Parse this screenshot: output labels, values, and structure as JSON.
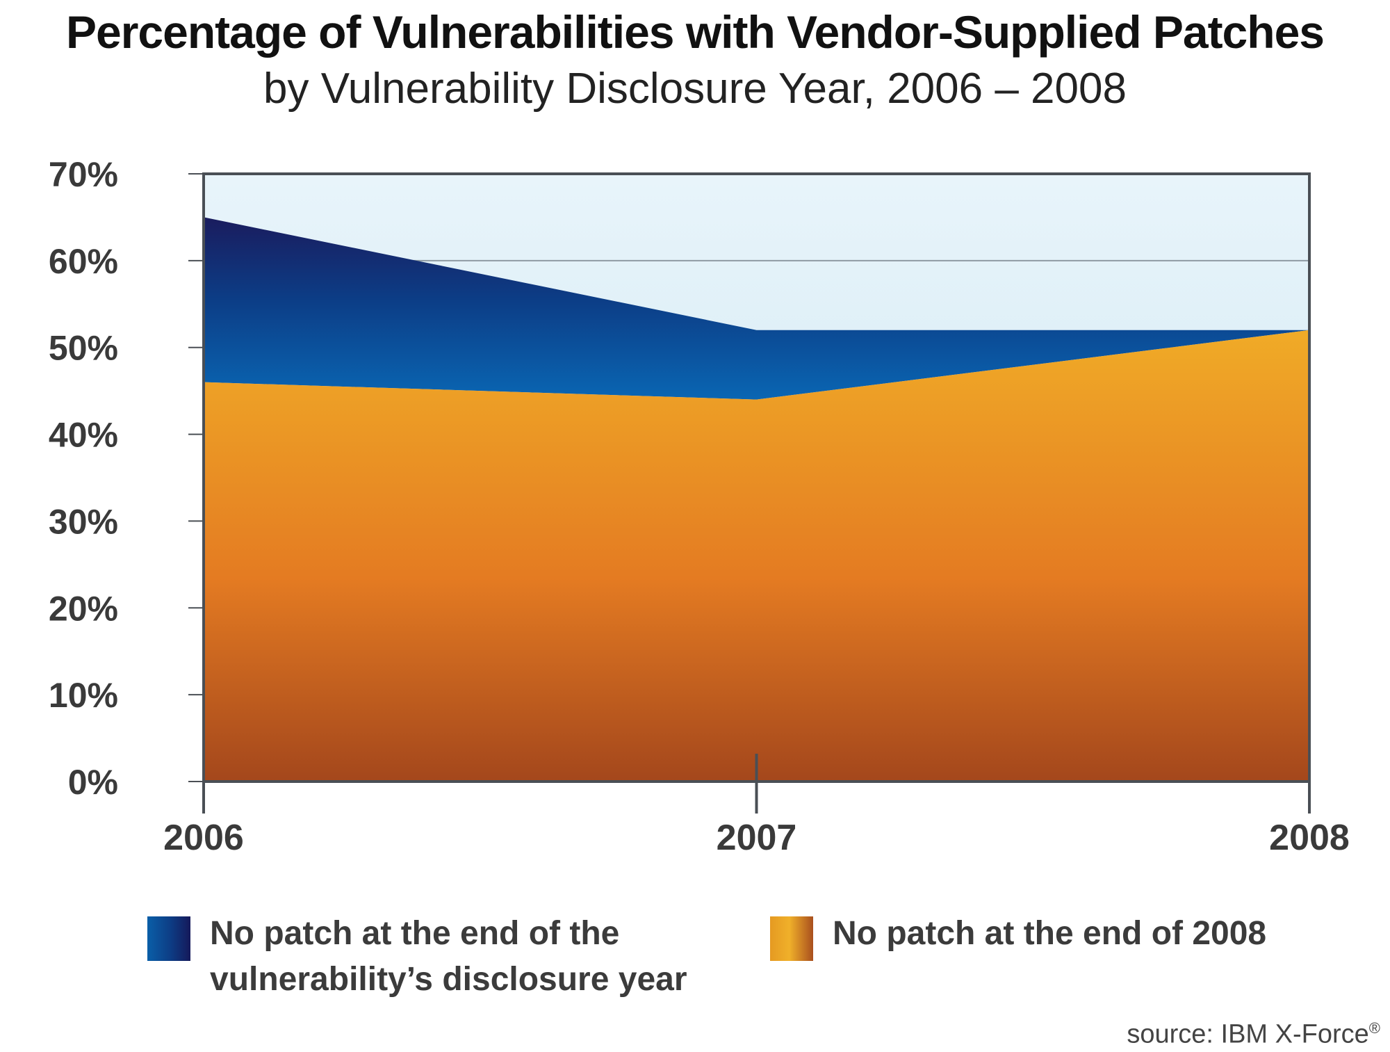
{
  "chart_data": {
    "type": "area",
    "title": "Percentage of Vulnerabilities with Vendor-Supplied Patches",
    "subtitle": "by Vulnerability Disclosure Year, 2006 – 2008",
    "x": [
      "2006",
      "2007",
      "2008"
    ],
    "yticks": [
      "0%",
      "10%",
      "20%",
      "30%",
      "40%",
      "50%",
      "60%",
      "70%"
    ],
    "ylim": [
      0,
      70
    ],
    "series": [
      {
        "name": "No patch at the end of the vulnerability's disclosure year",
        "values": [
          65,
          52,
          52
        ]
      },
      {
        "name": "No patch at the end of 2008",
        "values": [
          46,
          44,
          52
        ]
      }
    ],
    "grid": "horizontal",
    "legend": "bottom",
    "source": "source: IBM X-Force",
    "source_mark": "®"
  },
  "legend": [
    {
      "lines": [
        "No patch at the end of the",
        "vulnerability’s disclosure year"
      ]
    },
    {
      "lines": [
        "No patch at the end of 2008"
      ]
    }
  ],
  "colors": {
    "background": "#dff0f8",
    "blue_top": "#1a1c5e",
    "blue_bottom": "#0a63b0",
    "orange_top": "#eea826",
    "orange_mid": "#e37a22",
    "orange_bottom": "#a4481c"
  }
}
